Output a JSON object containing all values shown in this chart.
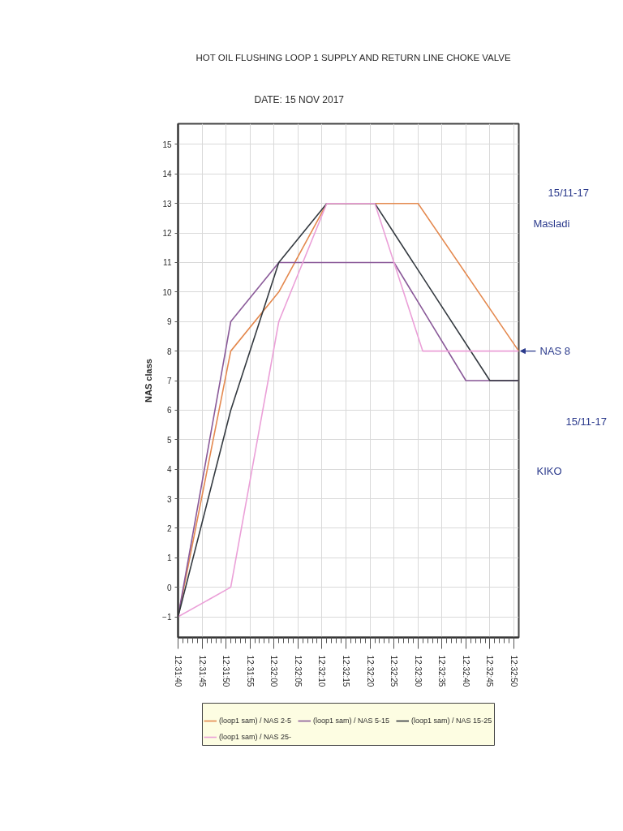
{
  "chart_data": {
    "type": "line",
    "title": "HOT OIL FLUSHING LOOP 1 SUPPLY AND RETURN LINE CHOKE VALVE",
    "subtitle": "DATE: 15 NOV 2017",
    "ylabel": "NAS class",
    "xlim": [
      12.52778,
      12.5475
    ],
    "xticks": [
      {
        "value": 12.52778,
        "label": "12:31:40"
      },
      {
        "value": 12.52917,
        "label": "12:31:45"
      },
      {
        "value": 12.53056,
        "label": "12:31:50"
      },
      {
        "value": 12.53194,
        "label": "12:31:55"
      },
      {
        "value": 12.53333,
        "label": "12:32:00"
      },
      {
        "value": 12.53472,
        "label": "12:32:05"
      },
      {
        "value": 12.53611,
        "label": "12:32:10"
      },
      {
        "value": 12.5375,
        "label": "12:32:15"
      },
      {
        "value": 12.53889,
        "label": "12:32:20"
      },
      {
        "value": 12.54028,
        "label": "12:32:25"
      },
      {
        "value": 12.54167,
        "label": "12:32:30"
      },
      {
        "value": 12.54306,
        "label": "12:32:35"
      },
      {
        "value": 12.54444,
        "label": "12:32:40"
      },
      {
        "value": 12.54583,
        "label": "12:32:45"
      },
      {
        "value": 12.54722,
        "label": "12:32:50"
      }
    ],
    "ylim": [
      -1.7,
      15.7
    ],
    "yticks": [
      -1,
      0,
      1,
      2,
      3,
      4,
      5,
      6,
      7,
      8,
      9,
      10,
      11,
      12,
      13,
      14,
      15
    ],
    "grid": true,
    "legend": "bottom",
    "series": [
      {
        "name": "(loop1 sam) / NAS 2-5",
        "color": "#e4894f",
        "x": [
          12.52778,
          12.53083,
          12.53361,
          12.53639,
          12.54167,
          12.5475
        ],
        "values": [
          -1,
          8,
          10,
          13,
          13,
          8
        ]
      },
      {
        "name": "(loop1 sam) / NAS 5-15",
        "color": "#8a5a99",
        "x": [
          12.52778,
          12.53083,
          12.53361,
          12.54028,
          12.54444,
          12.5475
        ],
        "values": [
          -1,
          9,
          11,
          11,
          7,
          7
        ]
      },
      {
        "name": "(loop1 sam) / NAS 15-25",
        "color": "#343a40",
        "x": [
          12.52778,
          12.53083,
          12.53361,
          12.53639,
          12.53917,
          12.54583,
          12.5475
        ],
        "values": [
          -1,
          6,
          11,
          13,
          13,
          7,
          7
        ]
      },
      {
        "name": "(loop1 sam) / NAS 25-",
        "color": "#eba0d8",
        "x": [
          12.52778,
          12.53083,
          12.53361,
          12.53639,
          12.53917,
          12.54194,
          12.5475
        ],
        "values": [
          -1,
          0,
          9,
          13,
          13,
          8,
          8
        ]
      }
    ],
    "annotations": [
      "15/11-17",
      "Masladi",
      {
        "text": "NAS 8",
        "x": 12.5475,
        "y": 8
      },
      "15/11-17",
      "KIKO"
    ]
  }
}
